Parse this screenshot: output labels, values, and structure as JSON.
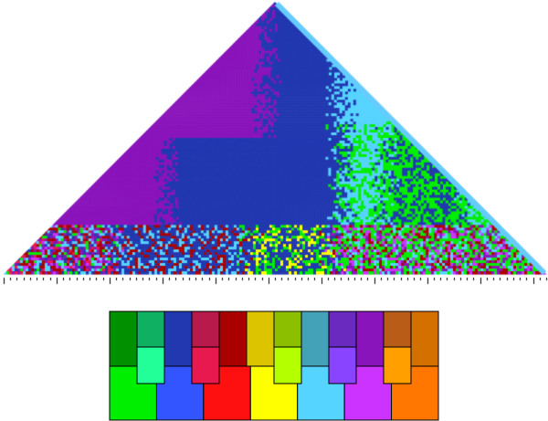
{
  "keyscape": {
    "seed": 7,
    "resolution": 100,
    "key_colors": {
      "C": "#00ee00",
      "C#": "#22ff99",
      "D": "#3355ff",
      "Eb": "#e8194f",
      "E": "#ff1010",
      "F": "#ffff00",
      "F#": "#b4ff00",
      "G": "#55d4ff",
      "Ab": "#8844ff",
      "A": "#cc33ff",
      "Bb": "#ffa000",
      "B": "#ff7700",
      "c": "#009000",
      "c#": "#0fb062",
      "d": "#2238b0",
      "eb": "#b81a4c",
      "e": "#aa0000",
      "f": "#ddc400",
      "f#": "#8cbf00",
      "g": "#44a2b8",
      "ab": "#6a2abf",
      "a": "#8a14bb",
      "bb": "#b85c18",
      "b": "#d47000"
    },
    "region_keys": [
      "a",
      "d",
      "C",
      "G",
      "e",
      "c",
      "Eb",
      "A",
      "F"
    ],
    "edge_color": "#66ccff"
  },
  "legend": {
    "white_keys": [
      "C",
      "D",
      "E",
      "F",
      "G",
      "A",
      "B"
    ],
    "black_keys": [
      "C#",
      "Eb",
      "F#",
      "Ab",
      "Bb"
    ],
    "minor_row": [
      "c",
      "c#",
      "d",
      "eb",
      "e",
      "f",
      "f#",
      "g",
      "ab",
      "a",
      "bb",
      "b"
    ],
    "outline": "#000000"
  }
}
